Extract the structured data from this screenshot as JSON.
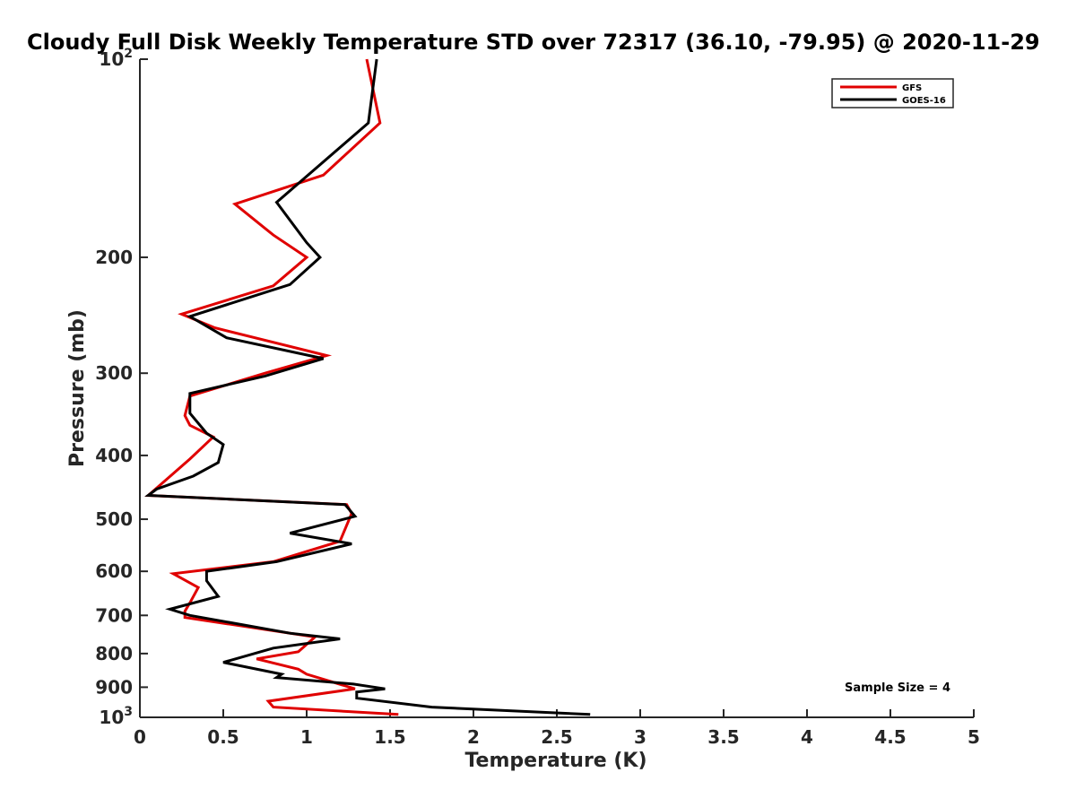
{
  "chart_data": {
    "type": "line",
    "title": "Cloudy Full Disk Weekly Temperature STD over 72317 (36.10, -79.95) @ 2020-11-29",
    "xlabel": "Temperature (K)",
    "ylabel": "Pressure (mb)",
    "xlim": [
      0,
      5
    ],
    "ylim": [
      100,
      1000
    ],
    "y_scale": "log",
    "y_reversed": true,
    "grid": false,
    "legend_position": "top-right",
    "x_ticks": [
      {
        "value": 0,
        "label": "0"
      },
      {
        "value": 0.5,
        "label": "0.5"
      },
      {
        "value": 1,
        "label": "1"
      },
      {
        "value": 1.5,
        "label": "1.5"
      },
      {
        "value": 2,
        "label": "2"
      },
      {
        "value": 2.5,
        "label": "2.5"
      },
      {
        "value": 3,
        "label": "3"
      },
      {
        "value": 3.5,
        "label": "3.5"
      },
      {
        "value": 4,
        "label": "4"
      },
      {
        "value": 4.5,
        "label": "4.5"
      },
      {
        "value": 5,
        "label": "5"
      }
    ],
    "y_ticks": [
      {
        "value": 100,
        "base": "10",
        "exp": "2"
      },
      {
        "value": 200,
        "label": "200"
      },
      {
        "value": 300,
        "label": "300"
      },
      {
        "value": 400,
        "label": "400"
      },
      {
        "value": 500,
        "label": "500"
      },
      {
        "value": 600,
        "label": "600"
      },
      {
        "value": 700,
        "label": "700"
      },
      {
        "value": 800,
        "label": "800"
      },
      {
        "value": 900,
        "label": "900"
      },
      {
        "value": 1000,
        "base": "10",
        "exp": "3"
      }
    ],
    "annotation": "Sample Size = 4",
    "series": [
      {
        "name": "GFS",
        "color": "#e00000",
        "points": [
          [
            1.36,
            100
          ],
          [
            1.44,
            125
          ],
          [
            1.1,
            150
          ],
          [
            0.57,
            166
          ],
          [
            0.8,
            185
          ],
          [
            1.0,
            200
          ],
          [
            0.8,
            221
          ],
          [
            0.25,
            244
          ],
          [
            0.45,
            256
          ],
          [
            1.12,
            282
          ],
          [
            0.75,
            300
          ],
          [
            0.3,
            325
          ],
          [
            0.27,
            348
          ],
          [
            0.3,
            360
          ],
          [
            0.44,
            375
          ],
          [
            0.3,
            405
          ],
          [
            0.05,
            460
          ],
          [
            1.24,
            475
          ],
          [
            1.27,
            490
          ],
          [
            1.2,
            540
          ],
          [
            0.8,
            580
          ],
          [
            0.2,
            605
          ],
          [
            0.35,
            635
          ],
          [
            0.3,
            670
          ],
          [
            0.27,
            690
          ],
          [
            0.27,
            705
          ],
          [
            1.05,
            755
          ],
          [
            0.95,
            795
          ],
          [
            0.7,
            815
          ],
          [
            0.95,
            845
          ],
          [
            1.0,
            860
          ],
          [
            1.29,
            905
          ],
          [
            0.77,
            945
          ],
          [
            0.8,
            965
          ],
          [
            1.55,
            990
          ]
        ]
      },
      {
        "name": "GOES-16",
        "color": "#000000",
        "points": [
          [
            1.42,
            100
          ],
          [
            1.37,
            125
          ],
          [
            0.82,
            165
          ],
          [
            1.0,
            190
          ],
          [
            1.08,
            200
          ],
          [
            0.9,
            220
          ],
          [
            0.3,
            246
          ],
          [
            0.52,
            265
          ],
          [
            1.1,
            285
          ],
          [
            0.75,
            303
          ],
          [
            0.3,
            322
          ],
          [
            0.3,
            345
          ],
          [
            0.4,
            370
          ],
          [
            0.5,
            385
          ],
          [
            0.47,
            410
          ],
          [
            0.32,
            430
          ],
          [
            0.1,
            450
          ],
          [
            0.05,
            460
          ],
          [
            1.23,
            475
          ],
          [
            1.29,
            495
          ],
          [
            0.9,
            525
          ],
          [
            1.27,
            545
          ],
          [
            0.82,
            580
          ],
          [
            0.4,
            600
          ],
          [
            0.4,
            620
          ],
          [
            0.47,
            655
          ],
          [
            0.18,
            685
          ],
          [
            0.3,
            700
          ],
          [
            0.9,
            745
          ],
          [
            1.2,
            760
          ],
          [
            0.8,
            785
          ],
          [
            0.5,
            825
          ],
          [
            0.85,
            860
          ],
          [
            0.82,
            870
          ],
          [
            1.28,
            890
          ],
          [
            1.47,
            905
          ],
          [
            1.3,
            915
          ],
          [
            1.3,
            935
          ],
          [
            1.75,
            965
          ],
          [
            2.7,
            990
          ]
        ]
      }
    ]
  }
}
